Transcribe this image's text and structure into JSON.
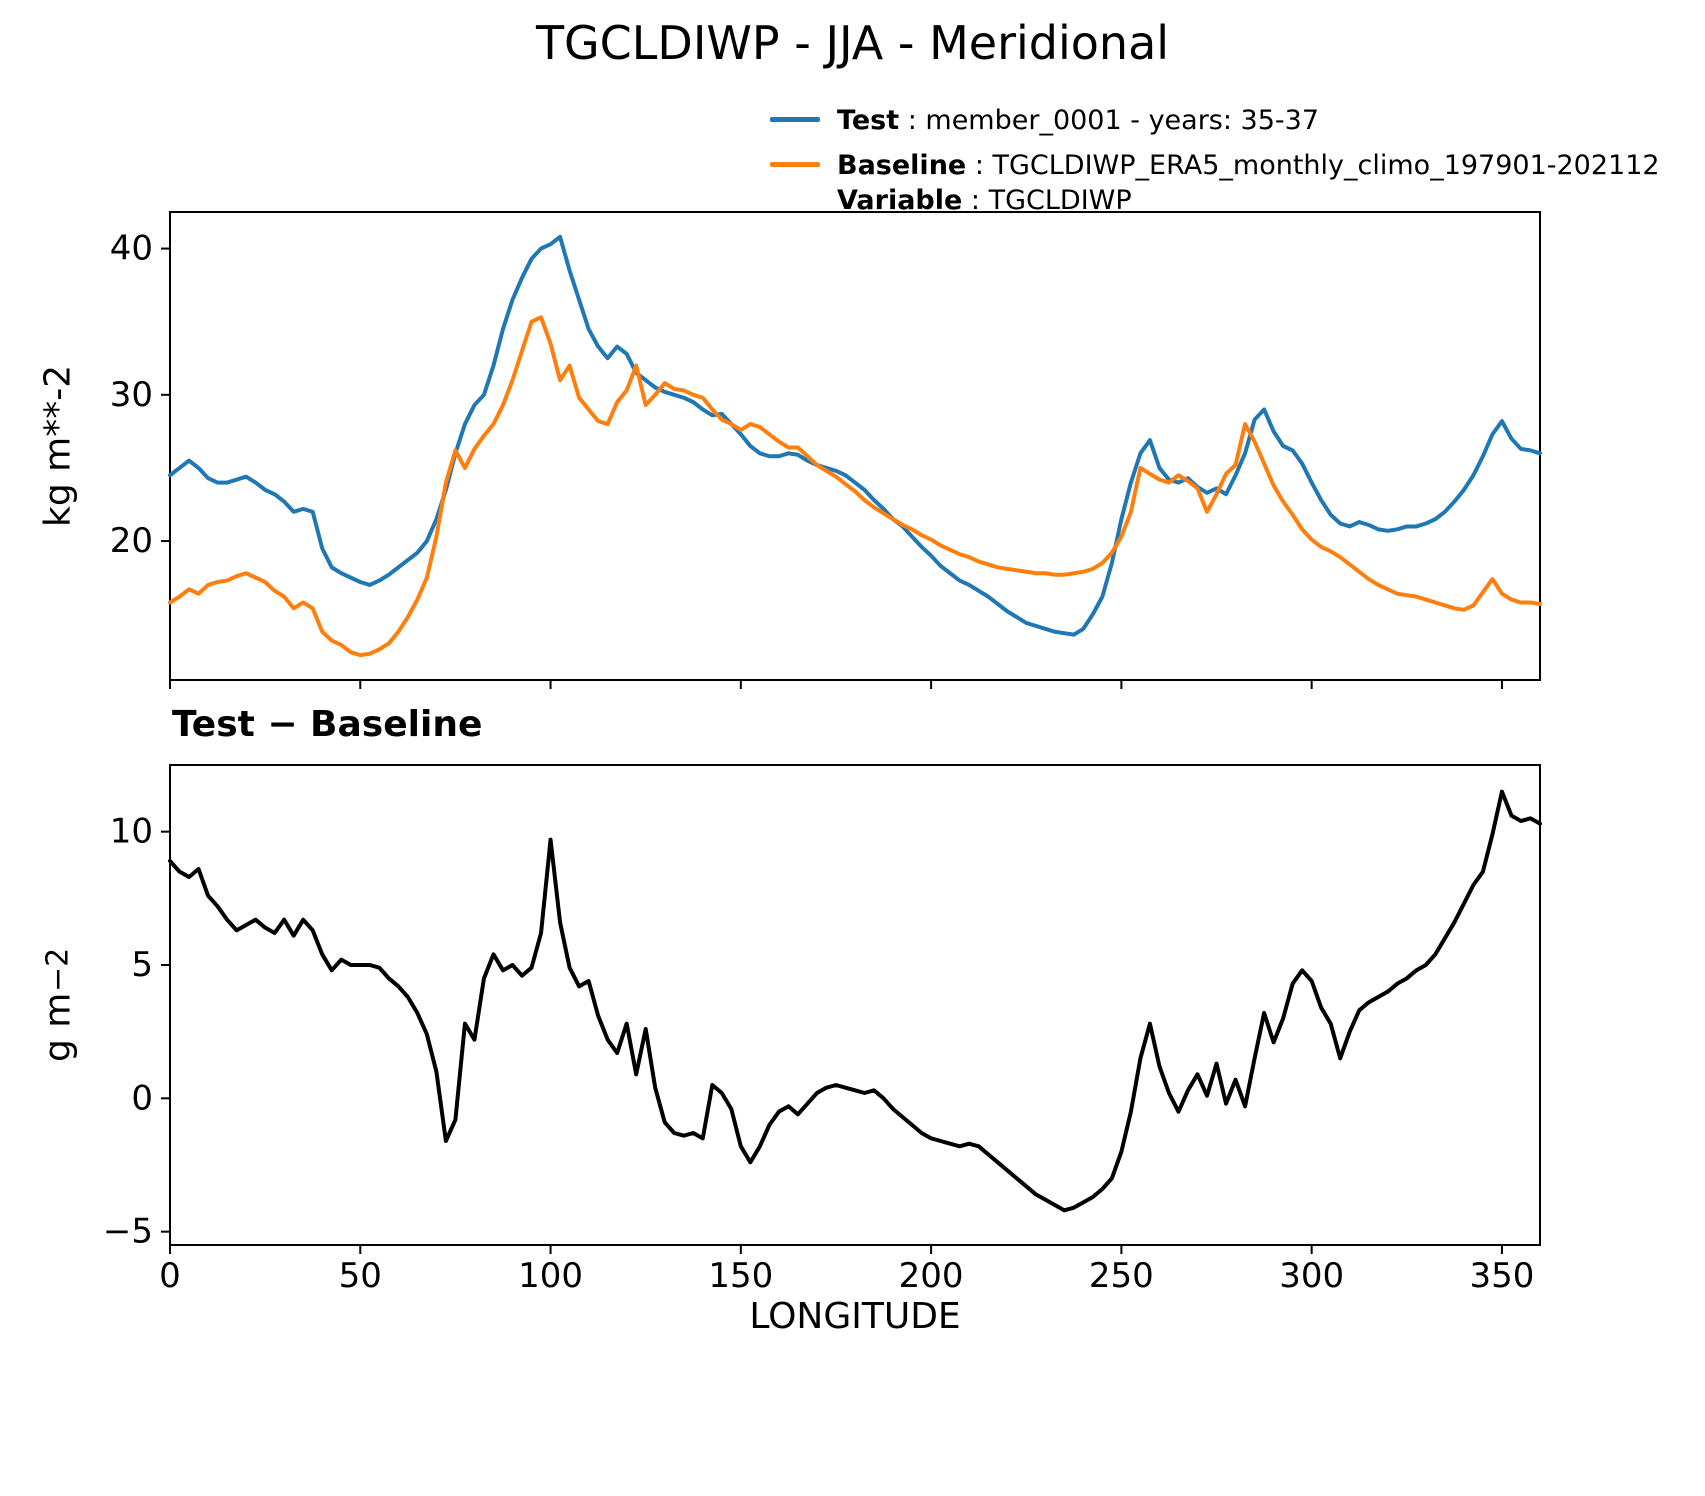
{
  "title": "TGCLDIWP - JJA - Meridional",
  "legend": {
    "test_label": "Test",
    "test_value": " : member_0001 - years: 35-37",
    "baseline_label": "Baseline",
    "baseline_value": " : TGCLDIWP_ERA5_monthly_climo_197901-202112",
    "variable_label": "Variable",
    "variable_value": " : TGCLDIWP"
  },
  "colors": {
    "test": "#1f77b4",
    "baseline": "#ff7f0e",
    "diff": "#000000"
  },
  "chart_data": [
    {
      "type": "line",
      "title": "TGCLDIWP - JJA - Meridional",
      "xlabel": "",
      "ylabel": "kg m**-2",
      "xlim": [
        0,
        360
      ],
      "ylim": [
        10.5,
        42.5
      ],
      "xticks": [
        0,
        50,
        100,
        150,
        200,
        250,
        300,
        350
      ],
      "yticks": [
        20,
        30,
        40
      ],
      "x_tick_labels_visible": false,
      "legend_position": "upper right outside",
      "grid": false,
      "x": [
        0,
        2.5,
        5,
        7.5,
        10,
        12.5,
        15,
        17.5,
        20,
        22.5,
        25,
        27.5,
        30,
        32.5,
        35,
        37.5,
        40,
        42.5,
        45,
        47.5,
        50,
        52.5,
        55,
        57.5,
        60,
        62.5,
        65,
        67.5,
        70,
        72.5,
        75,
        77.5,
        80,
        82.5,
        85,
        87.5,
        90,
        92.5,
        95,
        97.5,
        100,
        102.5,
        105,
        107.5,
        110,
        112.5,
        115,
        117.5,
        120,
        122.5,
        125,
        127.5,
        130,
        132.5,
        135,
        137.5,
        140,
        142.5,
        145,
        147.5,
        150,
        152.5,
        155,
        157.5,
        160,
        162.5,
        165,
        167.5,
        170,
        172.5,
        175,
        177.5,
        180,
        182.5,
        185,
        187.5,
        190,
        192.5,
        195,
        197.5,
        200,
        202.5,
        205,
        207.5,
        210,
        212.5,
        215,
        217.5,
        220,
        222.5,
        225,
        227.5,
        230,
        232.5,
        235,
        237.5,
        240,
        242.5,
        245,
        247.5,
        250,
        252.5,
        255,
        257.5,
        260,
        262.5,
        265,
        267.5,
        270,
        272.5,
        275,
        277.5,
        280,
        282.5,
        285,
        287.5,
        290,
        292.5,
        295,
        297.5,
        300,
        302.5,
        305,
        307.5,
        310,
        312.5,
        315,
        317.5,
        320,
        322.5,
        325,
        327.5,
        330,
        332.5,
        335,
        337.5,
        340,
        342.5,
        345,
        347.5,
        350,
        352.5,
        355,
        357.5,
        360
      ],
      "series": [
        {
          "name": "Test",
          "color": "#1f77b4",
          "values": [
            24.5,
            25.0,
            25.5,
            25.0,
            24.3,
            24.0,
            24.0,
            24.2,
            24.4,
            24.0,
            23.5,
            23.2,
            22.7,
            22.0,
            22.2,
            22.0,
            19.5,
            18.2,
            17.8,
            17.5,
            17.2,
            17.0,
            17.3,
            17.7,
            18.2,
            18.7,
            19.2,
            20.0,
            21.5,
            23.5,
            26.0,
            28.0,
            29.3,
            30.0,
            32.0,
            34.5,
            36.5,
            38.0,
            39.3,
            40.0,
            40.3,
            40.8,
            38.5,
            36.5,
            34.5,
            33.3,
            32.5,
            33.3,
            32.8,
            31.5,
            31.0,
            30.5,
            30.2,
            30.0,
            29.8,
            29.5,
            29.0,
            28.6,
            28.7,
            28.0,
            27.3,
            26.5,
            26.0,
            25.8,
            25.8,
            26.0,
            25.9,
            25.5,
            25.2,
            25.0,
            24.8,
            24.5,
            24.0,
            23.5,
            22.8,
            22.2,
            21.5,
            21.0,
            20.3,
            19.6,
            19.0,
            18.3,
            17.8,
            17.3,
            17.0,
            16.6,
            16.2,
            15.7,
            15.2,
            14.8,
            14.4,
            14.2,
            14.0,
            13.8,
            13.7,
            13.6,
            14.0,
            15.0,
            16.2,
            18.5,
            21.5,
            24.0,
            26.0,
            26.9,
            25.0,
            24.2,
            24.0,
            24.3,
            23.7,
            23.3,
            23.6,
            23.2,
            24.5,
            26.0,
            28.3,
            29.0,
            27.5,
            26.5,
            26.2,
            25.3,
            24.0,
            22.8,
            21.8,
            21.2,
            21.0,
            21.3,
            21.1,
            20.8,
            20.7,
            20.8,
            21.0,
            21.0,
            21.2,
            21.5,
            22.0,
            22.7,
            23.5,
            24.5,
            25.8,
            27.3,
            28.2,
            27.0,
            26.3,
            26.2,
            26.0
          ]
        },
        {
          "name": "Baseline",
          "color": "#ff7f0e",
          "values": [
            15.8,
            16.2,
            16.7,
            16.4,
            17.0,
            17.2,
            17.3,
            17.6,
            17.8,
            17.5,
            17.2,
            16.6,
            16.2,
            15.4,
            15.8,
            15.4,
            13.8,
            13.2,
            12.9,
            12.4,
            12.2,
            12.3,
            12.6,
            13.0,
            13.8,
            14.8,
            16.0,
            17.5,
            20.3,
            24.0,
            26.2,
            25.0,
            26.3,
            27.2,
            28.0,
            29.3,
            31.0,
            33.0,
            35.0,
            35.3,
            33.5,
            31.0,
            32.0,
            29.8,
            29.0,
            28.2,
            28.0,
            29.5,
            30.3,
            32.0,
            29.3,
            30.0,
            30.8,
            30.4,
            30.3,
            30.0,
            29.8,
            29.0,
            28.3,
            28.0,
            27.6,
            28.0,
            27.8,
            27.3,
            26.8,
            26.4,
            26.4,
            25.8,
            25.2,
            24.8,
            24.4,
            23.9,
            23.4,
            22.8,
            22.3,
            21.9,
            21.5,
            21.1,
            20.8,
            20.4,
            20.1,
            19.7,
            19.4,
            19.1,
            18.9,
            18.6,
            18.4,
            18.2,
            18.1,
            18.0,
            17.9,
            17.8,
            17.8,
            17.7,
            17.7,
            17.8,
            17.9,
            18.1,
            18.5,
            19.2,
            20.3,
            22.0,
            25.0,
            24.6,
            24.2,
            24.0,
            24.5,
            24.1,
            23.6,
            22.0,
            23.2,
            24.6,
            25.2,
            28.0,
            26.8,
            25.3,
            23.8,
            22.7,
            21.8,
            20.8,
            20.1,
            19.6,
            19.3,
            18.9,
            18.4,
            17.9,
            17.4,
            17.0,
            16.7,
            16.4,
            16.3,
            16.2,
            16.0,
            15.8,
            15.6,
            15.4,
            15.3,
            15.6,
            16.5,
            17.4,
            16.4,
            16.0,
            15.8,
            15.8,
            15.7
          ]
        }
      ]
    },
    {
      "type": "line",
      "title": "Test − Baseline",
      "xlabel": "LONGITUDE",
      "ylabel": "g m^-2",
      "ylabel_base": "g m",
      "ylabel_exp": "−2",
      "xlim": [
        0,
        360
      ],
      "ylim": [
        -5.5,
        12.5
      ],
      "xticks": [
        0,
        50,
        100,
        150,
        200,
        250,
        300,
        350
      ],
      "yticks": [
        -5,
        0,
        5,
        10
      ],
      "x_tick_labels_visible": true,
      "grid": false,
      "x": [
        0,
        2.5,
        5,
        7.5,
        10,
        12.5,
        15,
        17.5,
        20,
        22.5,
        25,
        27.5,
        30,
        32.5,
        35,
        37.5,
        40,
        42.5,
        45,
        47.5,
        50,
        52.5,
        55,
        57.5,
        60,
        62.5,
        65,
        67.5,
        70,
        72.5,
        75,
        77.5,
        80,
        82.5,
        85,
        87.5,
        90,
        92.5,
        95,
        97.5,
        100,
        102.5,
        105,
        107.5,
        110,
        112.5,
        115,
        117.5,
        120,
        122.5,
        125,
        127.5,
        130,
        132.5,
        135,
        137.5,
        140,
        142.5,
        145,
        147.5,
        150,
        152.5,
        155,
        157.5,
        160,
        162.5,
        165,
        167.5,
        170,
        172.5,
        175,
        177.5,
        180,
        182.5,
        185,
        187.5,
        190,
        192.5,
        195,
        197.5,
        200,
        202.5,
        205,
        207.5,
        210,
        212.5,
        215,
        217.5,
        220,
        222.5,
        225,
        227.5,
        230,
        232.5,
        235,
        237.5,
        240,
        242.5,
        245,
        247.5,
        250,
        252.5,
        255,
        257.5,
        260,
        262.5,
        265,
        267.5,
        270,
        272.5,
        275,
        277.5,
        280,
        282.5,
        285,
        287.5,
        290,
        292.5,
        295,
        297.5,
        300,
        302.5,
        305,
        307.5,
        310,
        312.5,
        315,
        317.5,
        320,
        322.5,
        325,
        327.5,
        330,
        332.5,
        335,
        337.5,
        340,
        342.5,
        345,
        347.5,
        350,
        352.5,
        355,
        357.5,
        360
      ],
      "series": [
        {
          "name": "Test - Baseline",
          "color": "#000000",
          "values": [
            8.9,
            8.5,
            8.3,
            8.6,
            7.6,
            7.2,
            6.7,
            6.3,
            6.5,
            6.7,
            6.4,
            6.2,
            6.7,
            6.1,
            6.7,
            6.3,
            5.4,
            4.8,
            5.2,
            5.0,
            5.0,
            5.0,
            4.9,
            4.5,
            4.2,
            3.8,
            3.2,
            2.4,
            1.0,
            -1.6,
            -0.8,
            2.8,
            2.2,
            4.5,
            5.4,
            4.8,
            5.0,
            4.6,
            4.9,
            6.2,
            9.7,
            6.6,
            4.9,
            4.2,
            4.4,
            3.1,
            2.2,
            1.7,
            2.8,
            0.9,
            2.6,
            0.4,
            -0.9,
            -1.3,
            -1.4,
            -1.3,
            -1.5,
            0.5,
            0.2,
            -0.4,
            -1.8,
            -2.4,
            -1.8,
            -1.0,
            -0.5,
            -0.3,
            -0.6,
            -0.2,
            0.2,
            0.4,
            0.5,
            0.4,
            0.3,
            0.2,
            0.3,
            0.0,
            -0.4,
            -0.7,
            -1.0,
            -1.3,
            -1.5,
            -1.6,
            -1.7,
            -1.8,
            -1.7,
            -1.8,
            -2.1,
            -2.4,
            -2.7,
            -3.0,
            -3.3,
            -3.6,
            -3.8,
            -4.0,
            -4.2,
            -4.1,
            -3.9,
            -3.7,
            -3.4,
            -3.0,
            -2.0,
            -0.5,
            1.5,
            2.8,
            1.2,
            0.2,
            -0.5,
            0.3,
            0.9,
            0.1,
            1.3,
            -0.2,
            0.7,
            -0.3,
            1.5,
            3.2,
            2.1,
            3.0,
            4.3,
            4.8,
            4.4,
            3.4,
            2.8,
            1.5,
            2.5,
            3.3,
            3.6,
            3.8,
            4.0,
            4.3,
            4.5,
            4.8,
            5.0,
            5.4,
            6.0,
            6.6,
            7.3,
            8.0,
            8.5,
            9.9,
            11.5,
            10.6,
            10.4,
            10.5,
            10.3
          ]
        }
      ]
    }
  ]
}
